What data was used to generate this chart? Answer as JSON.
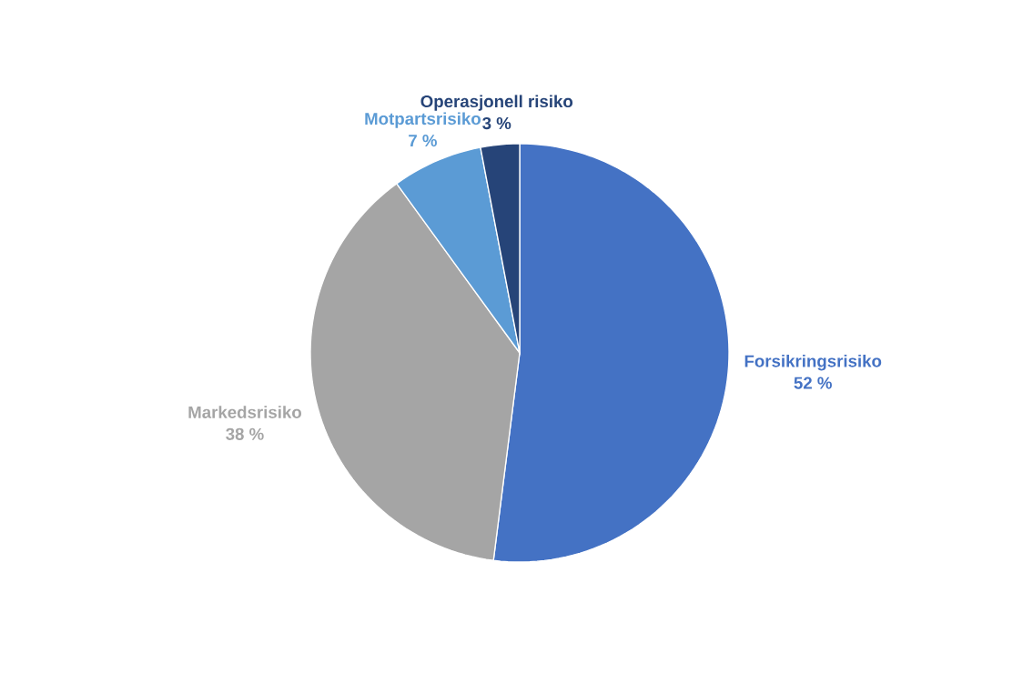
{
  "chart_data": {
    "type": "pie",
    "categories": [
      "Forsikringsrisiko",
      "Markedsrisiko",
      "Motpartsrisiko",
      "Operasjonell risiko"
    ],
    "values": [
      52,
      38,
      7,
      3
    ],
    "value_labels": [
      "52 %",
      "38 %",
      "7 %",
      "3 %"
    ],
    "colors": [
      "#4472c4",
      "#a5a5a5",
      "#5b9bd5",
      "#264478"
    ]
  }
}
